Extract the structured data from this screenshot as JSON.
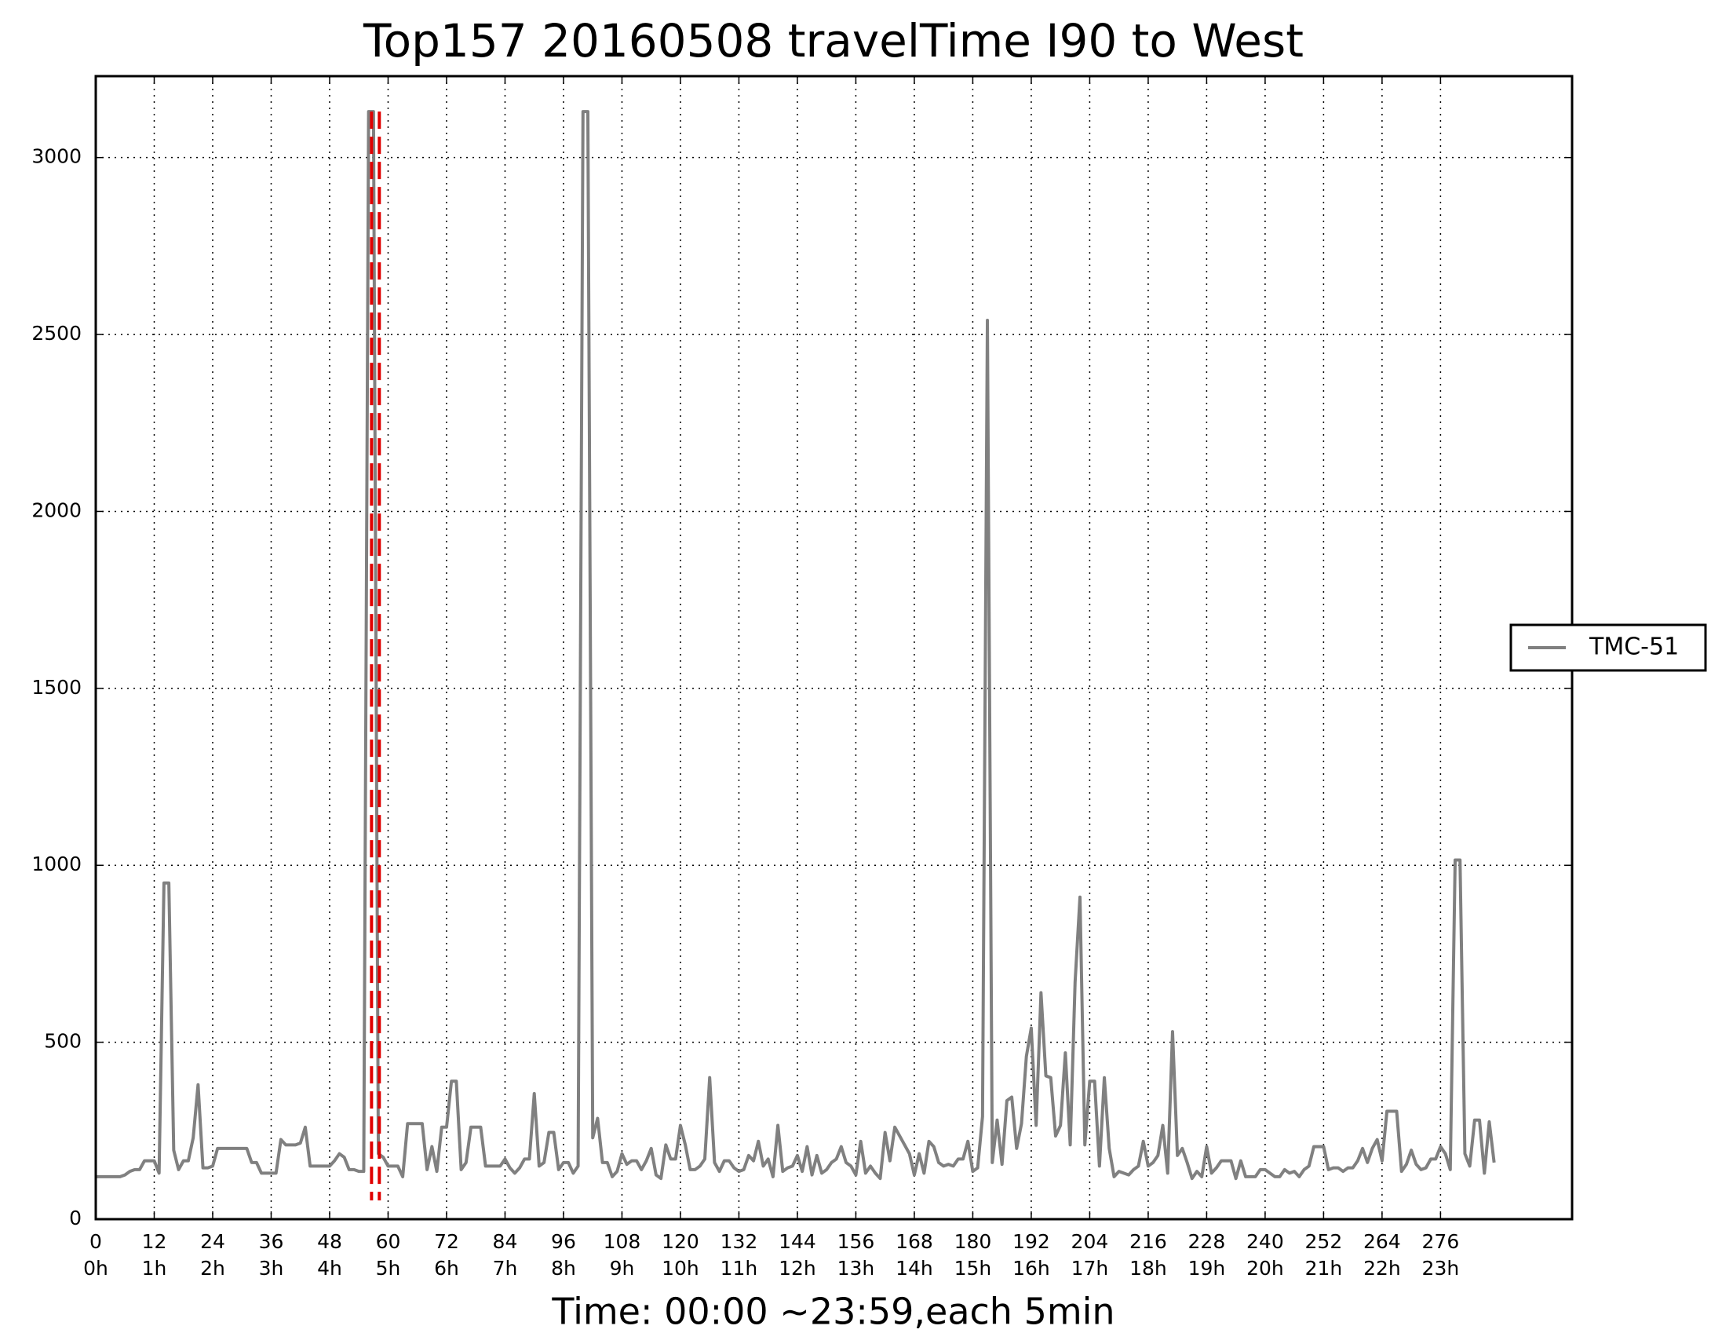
{
  "chart_data": {
    "type": "line",
    "title": "Top157 20160508 travelTime I90 to West",
    "xlabel": "Time: 00:00 ~23:59,each 5min",
    "x": [
      0,
      1,
      2,
      3,
      4,
      5,
      6,
      7,
      8,
      9,
      10,
      11,
      12,
      13,
      14,
      15,
      16,
      17,
      18,
      19,
      20,
      21,
      22,
      23,
      24,
      25,
      26,
      27,
      28,
      29,
      30,
      31,
      32,
      33,
      34,
      35,
      36,
      37,
      38,
      39,
      40,
      41,
      42,
      43,
      44,
      45,
      46,
      47,
      48,
      49,
      50,
      51,
      52,
      53,
      54,
      55,
      56,
      57,
      58,
      59,
      60,
      61,
      62,
      63,
      64,
      65,
      66,
      67,
      68,
      69,
      70,
      71,
      72,
      73,
      74,
      75,
      76,
      77,
      78,
      79,
      80,
      81,
      82,
      83,
      84,
      85,
      86,
      87,
      88,
      89,
      90,
      91,
      92,
      93,
      94,
      95,
      96,
      97,
      98,
      99,
      100,
      101,
      102,
      103,
      104,
      105,
      106,
      107,
      108,
      109,
      110,
      111,
      112,
      113,
      114,
      115,
      116,
      117,
      118,
      119,
      120,
      121,
      122,
      123,
      124,
      125,
      126,
      127,
      128,
      129,
      130,
      131,
      132,
      133,
      134,
      135,
      136,
      137,
      138,
      139,
      140,
      141,
      142,
      143,
      144,
      145,
      146,
      147,
      148,
      149,
      150,
      151,
      152,
      153,
      154,
      155,
      156,
      157,
      158,
      159,
      160,
      161,
      162,
      163,
      164,
      165,
      166,
      167,
      168,
      169,
      170,
      171,
      172,
      173,
      174,
      175,
      176,
      177,
      178,
      179,
      180,
      181,
      182,
      183,
      184,
      185,
      186,
      187,
      188,
      189,
      190,
      191,
      192,
      193,
      194,
      195,
      196,
      197,
      198,
      199,
      200,
      201,
      202,
      203,
      204,
      205,
      206,
      207,
      208,
      209,
      210,
      211,
      212,
      213,
      214,
      215,
      216,
      217,
      218,
      219,
      220,
      221,
      222,
      223,
      224,
      225,
      226,
      227,
      228,
      229,
      230,
      231,
      232,
      233,
      234,
      235,
      236,
      237,
      238,
      239,
      240,
      241,
      242,
      243,
      244,
      245,
      246,
      247,
      248,
      249,
      250,
      251,
      252,
      253,
      254,
      255,
      256,
      257,
      258,
      259,
      260,
      261,
      262,
      263,
      264,
      265,
      266,
      267,
      268,
      269,
      270,
      271,
      272,
      273,
      274,
      275,
      276,
      277,
      278,
      279,
      280,
      281,
      282,
      283,
      284,
      285,
      286,
      287
    ],
    "series": [
      {
        "name": "TMC-51",
        "color": "#808080",
        "values": [
          120,
          120,
          120,
          120,
          120,
          120,
          125,
          135,
          140,
          140,
          165,
          165,
          165,
          130,
          950,
          950,
          195,
          140,
          165,
          165,
          230,
          380,
          145,
          145,
          150,
          200,
          200,
          200,
          200,
          200,
          200,
          200,
          160,
          160,
          130,
          130,
          130,
          130,
          225,
          210,
          210,
          210,
          215,
          260,
          150,
          150,
          150,
          150,
          150,
          165,
          185,
          175,
          140,
          140,
          135,
          135,
          3130,
          3130,
          185,
          175,
          150,
          150,
          150,
          120,
          270,
          270,
          270,
          270,
          140,
          205,
          135,
          260,
          260,
          390,
          390,
          140,
          160,
          260,
          260,
          260,
          150,
          150,
          150,
          150,
          170,
          145,
          130,
          145,
          170,
          170,
          355,
          150,
          160,
          245,
          245,
          140,
          160,
          160,
          130,
          150,
          3130,
          3130,
          230,
          285,
          160,
          160,
          120,
          135,
          185,
          155,
          165,
          165,
          140,
          165,
          200,
          125,
          115,
          210,
          170,
          170,
          265,
          210,
          140,
          140,
          150,
          170,
          400,
          160,
          135,
          165,
          165,
          145,
          135,
          140,
          180,
          165,
          220,
          150,
          170,
          120,
          265,
          135,
          145,
          150,
          180,
          135,
          205,
          125,
          180,
          130,
          140,
          160,
          170,
          205,
          160,
          150,
          125,
          220,
          130,
          150,
          130,
          115,
          245,
          165,
          260,
          235,
          210,
          185,
          125,
          185,
          130,
          220,
          205,
          160,
          150,
          155,
          150,
          170,
          170,
          220,
          135,
          145,
          290,
          2540,
          160,
          280,
          155,
          335,
          345,
          200,
          270,
          460,
          540,
          265,
          640,
          405,
          400,
          235,
          265,
          470,
          210,
          670,
          910,
          210,
          390,
          390,
          150,
          400,
          200,
          120,
          135,
          130,
          125,
          140,
          150,
          220,
          150,
          160,
          180,
          265,
          130,
          530,
          180,
          200,
          160,
          115,
          135,
          120,
          205,
          130,
          145,
          165,
          165,
          165,
          115,
          165,
          120,
          120,
          120,
          140,
          140,
          130,
          120,
          120,
          140,
          130,
          135,
          120,
          140,
          150,
          205,
          205,
          205,
          140,
          145,
          145,
          135,
          145,
          145,
          165,
          200,
          160,
          200,
          225,
          165,
          305,
          305,
          305,
          135,
          155,
          195,
          155,
          140,
          145,
          170,
          170,
          205,
          185,
          140,
          1015,
          1015,
          185,
          150,
          280,
          280,
          130,
          275,
          160
        ]
      }
    ],
    "xlim": [
      0,
      303
    ],
    "ylim": [
      0,
      3230
    ],
    "xticks": [
      {
        "value": 0,
        "label": "0\n0h"
      },
      {
        "value": 12,
        "label": "12\n1h"
      },
      {
        "value": 24,
        "label": "24\n2h"
      },
      {
        "value": 36,
        "label": "36\n3h"
      },
      {
        "value": 48,
        "label": "48\n4h"
      },
      {
        "value": 60,
        "label": "60\n5h"
      },
      {
        "value": 72,
        "label": "72\n6h"
      },
      {
        "value": 84,
        "label": "84\n7h"
      },
      {
        "value": 96,
        "label": "96\n8h"
      },
      {
        "value": 108,
        "label": "108\n9h"
      },
      {
        "value": 120,
        "label": "120\n10h"
      },
      {
        "value": 132,
        "label": "132\n11h"
      },
      {
        "value": 144,
        "label": "144\n12h"
      },
      {
        "value": 156,
        "label": "156\n13h"
      },
      {
        "value": 168,
        "label": "168\n14h"
      },
      {
        "value": 180,
        "label": "180\n15h"
      },
      {
        "value": 192,
        "label": "192\n16h"
      },
      {
        "value": 204,
        "label": "204\n17h"
      },
      {
        "value": 216,
        "label": "216\n18h"
      },
      {
        "value": 228,
        "label": "228\n19h"
      },
      {
        "value": 240,
        "label": "240\n20h"
      },
      {
        "value": 252,
        "label": "252\n21h"
      },
      {
        "value": 264,
        "label": "264\n22h"
      },
      {
        "value": 276,
        "label": "276\n23h"
      }
    ],
    "yticks": [
      0,
      500,
      1000,
      1500,
      2000,
      2500,
      3000
    ],
    "grid": true,
    "legend": "outside-right",
    "vlines": {
      "x": [
        56.6,
        58.2
      ],
      "ymin": 53,
      "ymax": 3130,
      "color": "#e00000"
    }
  }
}
